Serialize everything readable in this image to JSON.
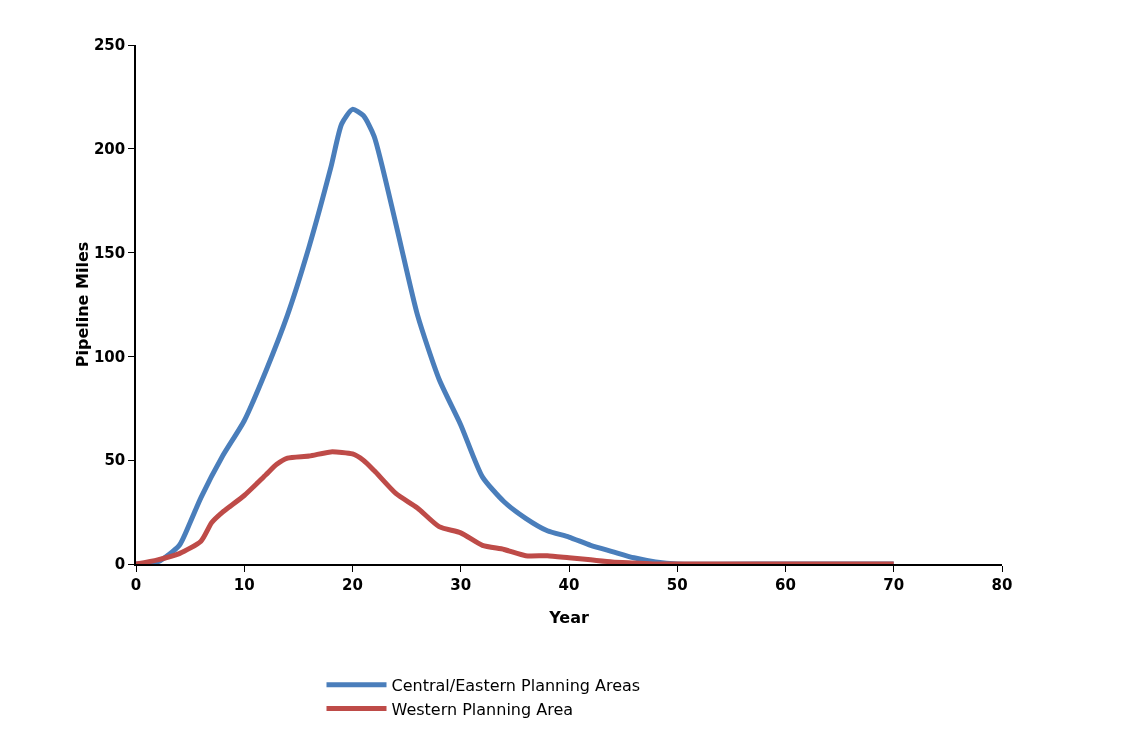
{
  "chart_data": {
    "type": "line",
    "xlabel": "Year",
    "ylabel": "Pipeline Miles",
    "xlim": [
      0,
      80
    ],
    "xticks": [
      0,
      10,
      20,
      30,
      40,
      50,
      60,
      70,
      80
    ],
    "ylim": [
      0,
      250
    ],
    "yticks": [
      0,
      50,
      100,
      150,
      200,
      250
    ],
    "grid": false,
    "legend": "bottom",
    "marker": "none",
    "line_style": "solid",
    "series": [
      {
        "name": "Central/Eastern Planning Areas",
        "color": "#4a7ebb",
        "x": [
          0,
          2,
          4,
          5,
          6,
          8,
          10,
          12,
          14,
          16,
          18,
          19,
          20,
          21,
          22,
          24,
          26,
          28,
          30,
          32,
          34,
          36,
          38,
          40,
          42,
          44,
          46,
          48,
          50,
          60,
          70
        ],
        "values": [
          0,
          1,
          9,
          20,
          32,
          52,
          69,
          93,
          120,
          153,
          191,
          212,
          219,
          216,
          206,
          164,
          120,
          89,
          67,
          42,
          30,
          22,
          16,
          13,
          9,
          6,
          3,
          1,
          0,
          0,
          0
        ]
      },
      {
        "name": "Western Planning Area",
        "color": "#be4b48",
        "x": [
          0,
          2,
          4,
          6,
          7,
          8,
          10,
          12,
          13,
          14,
          16,
          18,
          20,
          21,
          22,
          24,
          26,
          28,
          30,
          32,
          34,
          36,
          38,
          40,
          42,
          44,
          46,
          48,
          50,
          60,
          70
        ],
        "values": [
          0,
          2,
          5,
          11,
          20,
          25,
          33,
          43,
          48,
          51,
          52,
          54,
          53,
          50,
          45,
          34,
          27,
          18,
          15,
          9,
          7,
          4,
          4,
          3,
          2,
          1,
          0.5,
          0,
          0,
          0,
          0
        ]
      }
    ]
  }
}
